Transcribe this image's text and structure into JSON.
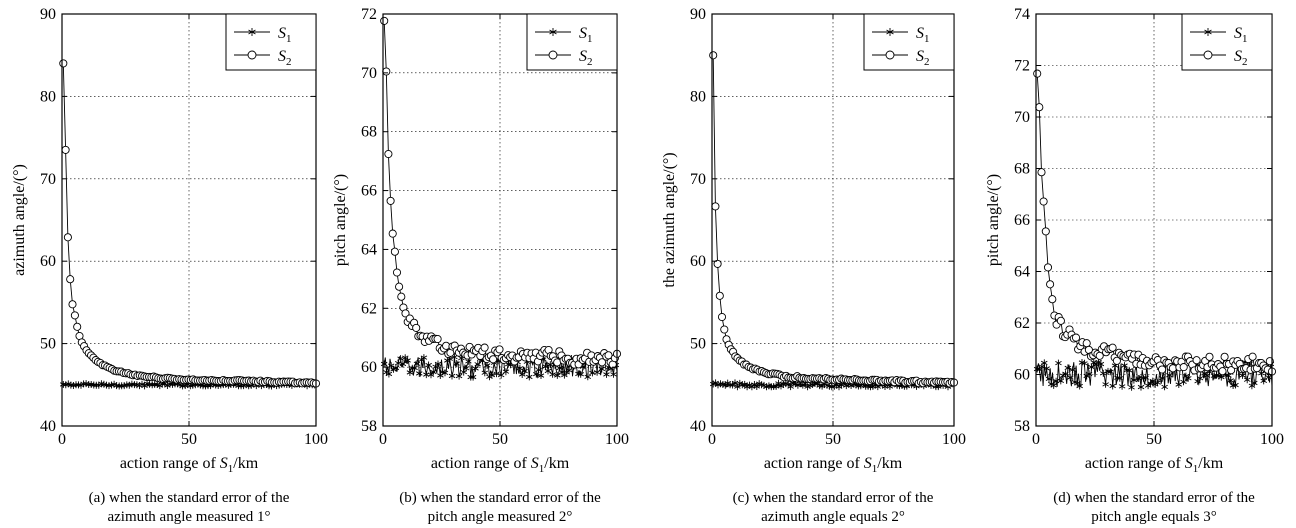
{
  "chart_data": [
    {
      "type": "line",
      "ylabel": "azimuth angle/(°)",
      "xlabel_parts": [
        "action range of ",
        "S",
        "1",
        "/km"
      ],
      "caption_lines": [
        "(a) when the standard error of the",
        "azimuth angle measured 1°"
      ],
      "xlim": [
        0,
        100
      ],
      "ylim": [
        40,
        90
      ],
      "xticks": [
        0,
        50,
        100
      ],
      "yticks": [
        40,
        50,
        60,
        70,
        80,
        90
      ],
      "grid": true,
      "legend_position": "top-right",
      "noise": 0.15,
      "series": [
        {
          "name": "S",
          "subscript": "1",
          "marker": "star",
          "x": [
            0.5,
            2,
            5,
            10,
            20,
            30,
            40,
            50,
            60,
            70,
            80,
            90,
            100
          ],
          "y": [
            45,
            45,
            45,
            45,
            45,
            45,
            45,
            45,
            45,
            45,
            45,
            45,
            45
          ]
        },
        {
          "name": "S",
          "subscript": "2",
          "marker": "circle",
          "x": [
            0.5,
            1.5,
            2,
            2.5,
            3,
            3.5,
            4,
            5,
            6,
            7,
            8,
            10,
            12,
            15,
            20,
            25,
            30,
            40,
            50,
            60,
            70,
            80,
            90,
            100
          ],
          "y": [
            84,
            72.5,
            65.5,
            61.5,
            59,
            56.5,
            55,
            53.5,
            52,
            50.8,
            50,
            49,
            48.3,
            47.6,
            46.8,
            46.4,
            46.1,
            45.8,
            45.6,
            45.5,
            45.5,
            45.4,
            45.3,
            45.2
          ]
        }
      ]
    },
    {
      "type": "line",
      "ylabel": "pitch angle/(°)",
      "xlabel_parts": [
        "action range of ",
        "S",
        "1",
        "/km"
      ],
      "caption_lines": [
        "(b) when the standard error of the",
        "pitch angle measured 2°"
      ],
      "xlim": [
        0,
        100
      ],
      "ylim": [
        58,
        72
      ],
      "xticks": [
        0,
        50,
        100
      ],
      "yticks": [
        58,
        60,
        62,
        64,
        66,
        68,
        70,
        72
      ],
      "grid": true,
      "legend_position": "top-right",
      "noise": 0.35,
      "series": [
        {
          "name": "S",
          "subscript": "1",
          "marker": "star",
          "x": [
            0.5,
            10,
            20,
            30,
            40,
            50,
            60,
            70,
            80,
            90,
            100
          ],
          "y": [
            60,
            60,
            60,
            60,
            60,
            60,
            60,
            60,
            60,
            60,
            60
          ]
        },
        {
          "name": "S",
          "subscript": "2",
          "marker": "circle",
          "x": [
            0.5,
            1,
            1.5,
            2,
            3,
            4,
            5,
            6,
            7,
            8,
            10,
            12,
            15,
            18,
            20,
            25,
            30,
            40,
            50,
            60,
            70,
            80,
            90,
            100
          ],
          "y": [
            71.8,
            71.1,
            69.8,
            67.8,
            66,
            64.6,
            64,
            63.2,
            62.7,
            62.3,
            61.8,
            61.5,
            61.2,
            61,
            60.9,
            60.7,
            60.6,
            60.5,
            60.4,
            60.4,
            60.4,
            60.3,
            60.3,
            60.3
          ]
        }
      ]
    },
    {
      "type": "line",
      "ylabel": "the azimuth angle/(°)",
      "xlabel_parts": [
        "action range of ",
        "S",
        "1",
        "/km"
      ],
      "caption_lines": [
        "(c) when the standard error of the",
        "azimuth angle equals 2°"
      ],
      "xlim": [
        0,
        100
      ],
      "ylim": [
        40,
        90
      ],
      "xticks": [
        0,
        50,
        100
      ],
      "yticks": [
        40,
        50,
        60,
        70,
        80,
        90
      ],
      "grid": true,
      "legend_position": "top-right",
      "noise": 0.25,
      "series": [
        {
          "name": "S",
          "subscript": "1",
          "marker": "star",
          "x": [
            0.5,
            10,
            20,
            30,
            40,
            50,
            60,
            70,
            80,
            90,
            100
          ],
          "y": [
            45,
            45,
            45,
            45,
            45,
            45,
            45,
            45,
            45,
            45,
            45
          ]
        },
        {
          "name": "S",
          "subscript": "2",
          "marker": "circle",
          "x": [
            0.5,
            1,
            1.5,
            2,
            2.5,
            3,
            3.5,
            4,
            5,
            6,
            7,
            8,
            10,
            12,
            15,
            20,
            25,
            30,
            40,
            50,
            60,
            70,
            80,
            90,
            100
          ],
          "y": [
            85,
            72,
            65.5,
            61,
            59,
            56.5,
            55,
            53.5,
            51.8,
            50.5,
            49.8,
            49.2,
            48.4,
            47.8,
            47.2,
            46.7,
            46.3,
            46,
            45.8,
            45.7,
            45.6,
            45.5,
            45.4,
            45.3,
            45.3
          ]
        }
      ]
    },
    {
      "type": "line",
      "ylabel": "pitch angle/(°)",
      "xlabel_parts": [
        "action range of ",
        "S",
        "1",
        "/km"
      ],
      "caption_lines": [
        "(d) when the standard error of the",
        "pitch angle equals 3°"
      ],
      "xlim": [
        0,
        100
      ],
      "ylim": [
        58,
        74
      ],
      "xticks": [
        0,
        50,
        100
      ],
      "yticks": [
        58,
        60,
        62,
        64,
        66,
        68,
        70,
        72,
        74
      ],
      "grid": true,
      "legend_position": "top-right",
      "noise": 0.5,
      "series": [
        {
          "name": "S",
          "subscript": "1",
          "marker": "star",
          "x": [
            0.5,
            10,
            20,
            30,
            40,
            50,
            60,
            70,
            80,
            90,
            100
          ],
          "y": [
            60,
            60,
            60,
            60,
            60,
            60,
            60,
            60,
            60,
            60,
            60
          ]
        },
        {
          "name": "S",
          "subscript": "2",
          "marker": "circle",
          "x": [
            0.5,
            1,
            1.5,
            2,
            3,
            4,
            5,
            6,
            7,
            8,
            9,
            10,
            12,
            15,
            20,
            25,
            30,
            40,
            50,
            60,
            70,
            80,
            90,
            100
          ],
          "y": [
            71.7,
            72,
            70,
            68.3,
            67,
            65.8,
            64.2,
            63.5,
            62.9,
            62.2,
            62,
            61.9,
            61.6,
            61.4,
            61.1,
            60.9,
            60.8,
            60.6,
            60.5,
            60.4,
            60.4,
            60.4,
            60.4,
            60.4
          ]
        }
      ]
    }
  ]
}
